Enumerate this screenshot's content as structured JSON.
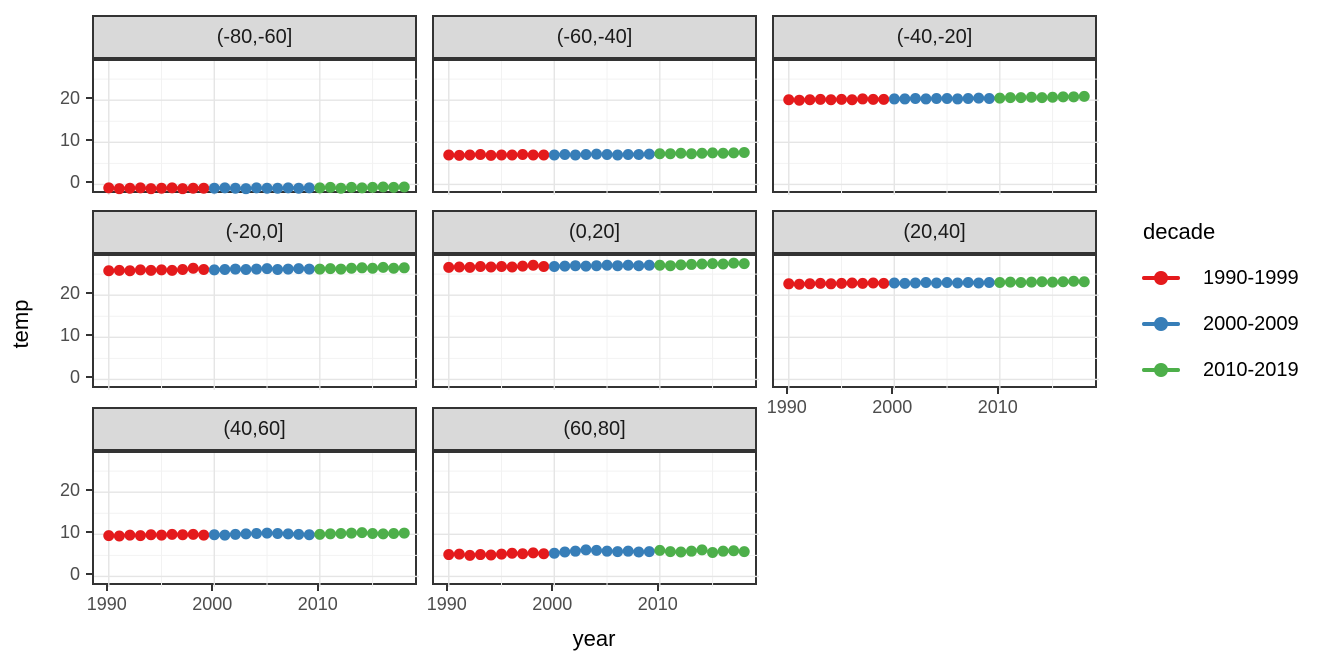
{
  "axes": {
    "x_title": "year",
    "y_title": "temp"
  },
  "legend": {
    "title": "decade"
  },
  "colors": {
    "strip_fill": "#D9D9D9",
    "panel_border": "#333333",
    "grid_major": "#E5E5E5",
    "grid_minor": "#F2F2F2",
    "tick_label": "#4D4D4D"
  },
  "chart_data": {
    "type": "scatter",
    "title": "",
    "xlabel": "year",
    "ylabel": "temp",
    "facet_variable": "latitude band",
    "xlim": [
      1988.6,
      2019.4
    ],
    "ylim": [
      -2.5,
      29.3
    ],
    "x_ticks": [
      1990,
      2000,
      2010
    ],
    "y_ticks": [
      0,
      10,
      20
    ],
    "x_minor_ticks": [
      1995,
      2005,
      2015
    ],
    "y_minor_ticks": [
      5,
      15,
      25
    ],
    "grid": true,
    "legend_position": "right",
    "legend_title": "decade",
    "decades": [
      {
        "label": "1990-1999",
        "start": 1990,
        "end": 1999,
        "color": "#E41A1C"
      },
      {
        "label": "2000-2009",
        "start": 2000,
        "end": 2009,
        "color": "#377EB8"
      },
      {
        "label": "2010-2019",
        "start": 2010,
        "end": 2019,
        "color": "#4DAF4A"
      }
    ],
    "years": [
      1990,
      1991,
      1992,
      1993,
      1994,
      1995,
      1996,
      1997,
      1998,
      1999,
      2000,
      2001,
      2002,
      2003,
      2004,
      2005,
      2006,
      2007,
      2008,
      2009,
      2010,
      2011,
      2012,
      2013,
      2014,
      2015,
      2016,
      2017,
      2018
    ],
    "facets": [
      {
        "label": "(-80,-60]",
        "row": 0,
        "col": 0,
        "x_axis": false,
        "values": [
          -0.8,
          -1.0,
          -0.9,
          -0.8,
          -1.0,
          -0.9,
          -0.8,
          -1.0,
          -0.9,
          -0.9,
          -0.9,
          -0.8,
          -0.9,
          -1.0,
          -0.8,
          -0.9,
          -0.9,
          -0.8,
          -0.9,
          -0.8,
          -0.8,
          -0.7,
          -0.9,
          -0.7,
          -0.8,
          -0.7,
          -0.6,
          -0.7,
          -0.6
        ]
      },
      {
        "label": "(-60,-40]",
        "row": 0,
        "col": 1,
        "x_axis": false,
        "values": [
          7.0,
          6.9,
          7.0,
          7.1,
          6.9,
          7.0,
          7.0,
          7.1,
          7.0,
          7.0,
          7.0,
          7.1,
          7.0,
          7.1,
          7.2,
          7.1,
          7.0,
          7.1,
          7.1,
          7.2,
          7.3,
          7.3,
          7.4,
          7.3,
          7.4,
          7.5,
          7.4,
          7.5,
          7.6
        ]
      },
      {
        "label": "(-40,-20]",
        "row": 0,
        "col": 2,
        "x_axis": false,
        "values": [
          20.1,
          20.0,
          20.1,
          20.2,
          20.1,
          20.2,
          20.1,
          20.3,
          20.2,
          20.2,
          20.3,
          20.3,
          20.4,
          20.3,
          20.4,
          20.4,
          20.3,
          20.4,
          20.5,
          20.4,
          20.5,
          20.6,
          20.6,
          20.7,
          20.6,
          20.7,
          20.8,
          20.8,
          20.9
        ]
      },
      {
        "label": "(-20,0]",
        "row": 1,
        "col": 0,
        "x_axis": false,
        "values": [
          25.8,
          25.9,
          25.8,
          26.0,
          25.9,
          26.0,
          25.9,
          26.1,
          26.4,
          26.1,
          26.0,
          26.1,
          26.2,
          26.1,
          26.2,
          26.3,
          26.1,
          26.2,
          26.3,
          26.2,
          26.2,
          26.3,
          26.2,
          26.4,
          26.5,
          26.4,
          26.6,
          26.4,
          26.5
        ]
      },
      {
        "label": "(0,20]",
        "row": 1,
        "col": 1,
        "x_axis": false,
        "values": [
          26.6,
          26.7,
          26.6,
          26.8,
          26.7,
          26.8,
          26.7,
          26.9,
          27.1,
          26.8,
          26.8,
          26.9,
          27.0,
          26.9,
          27.0,
          27.1,
          27.0,
          27.1,
          27.0,
          27.1,
          27.1,
          27.0,
          27.2,
          27.3,
          27.4,
          27.5,
          27.4,
          27.6,
          27.5
        ]
      },
      {
        "label": "(20,40]",
        "row": 1,
        "col": 2,
        "x_axis": true,
        "values": [
          22.7,
          22.6,
          22.7,
          22.8,
          22.7,
          22.8,
          22.9,
          22.8,
          22.9,
          22.8,
          22.9,
          22.8,
          22.9,
          23.0,
          22.9,
          23.0,
          22.9,
          23.0,
          22.9,
          23.0,
          23.0,
          23.1,
          23.0,
          23.1,
          23.2,
          23.1,
          23.2,
          23.3,
          23.2
        ]
      },
      {
        "label": "(40,60]",
        "row": 2,
        "col": 0,
        "x_axis": true,
        "values": [
          9.7,
          9.6,
          9.8,
          9.7,
          9.9,
          9.8,
          10.0,
          9.9,
          10.0,
          9.8,
          9.9,
          9.8,
          10.0,
          10.1,
          10.2,
          10.3,
          10.2,
          10.1,
          10.0,
          9.9,
          10.0,
          10.1,
          10.2,
          10.3,
          10.4,
          10.2,
          10.1,
          10.2,
          10.3
        ]
      },
      {
        "label": "(60,80]",
        "row": 2,
        "col": 1,
        "x_axis": true,
        "values": [
          5.2,
          5.3,
          5.0,
          5.2,
          5.1,
          5.3,
          5.5,
          5.4,
          5.6,
          5.4,
          5.5,
          5.8,
          6.0,
          6.3,
          6.2,
          6.0,
          5.9,
          6.0,
          5.8,
          5.9,
          6.2,
          5.9,
          5.8,
          6.0,
          6.3,
          5.7,
          6.0,
          6.1,
          5.9
        ]
      }
    ]
  }
}
